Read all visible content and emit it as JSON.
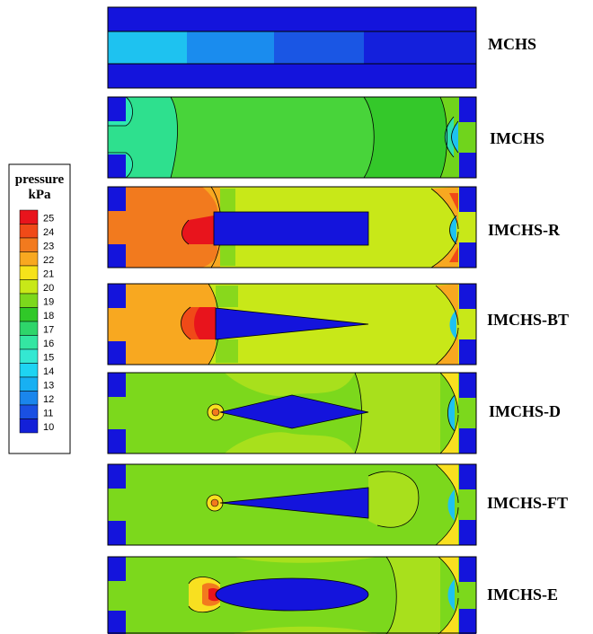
{
  "legend": {
    "title_line1": "pressure",
    "title_line2": "kPa",
    "levels": [
      {
        "value": "25",
        "color": "#e8141c"
      },
      {
        "value": "24",
        "color": "#f04a18"
      },
      {
        "value": "23",
        "color": "#f27a1e"
      },
      {
        "value": "22",
        "color": "#f8a820"
      },
      {
        "value": "21",
        "color": "#f6e21a"
      },
      {
        "value": "20",
        "color": "#c8e818"
      },
      {
        "value": "19",
        "color": "#7cd81c"
      },
      {
        "value": "18",
        "color": "#30c828"
      },
      {
        "value": "17",
        "color": "#2ed56a"
      },
      {
        "value": "16",
        "color": "#34e6a2"
      },
      {
        "value": "15",
        "color": "#34e8d2"
      },
      {
        "value": "14",
        "color": "#1ed4f2"
      },
      {
        "value": "13",
        "color": "#18b0f2"
      },
      {
        "value": "12",
        "color": "#1a86ec"
      },
      {
        "value": "11",
        "color": "#1a50e2"
      },
      {
        "value": "10",
        "color": "#1320d8"
      }
    ]
  },
  "panels": [
    {
      "label": "MCHS"
    },
    {
      "label": "IMCHS"
    },
    {
      "label": "IMCHS-R"
    },
    {
      "label": "IMCHS-BT"
    },
    {
      "label": "IMCHS-D"
    },
    {
      "label": "IMCHS-FT"
    },
    {
      "label": "IMCHS-E"
    }
  ],
  "colors": {
    "solid": "#1414dc",
    "outline": "#000000"
  }
}
